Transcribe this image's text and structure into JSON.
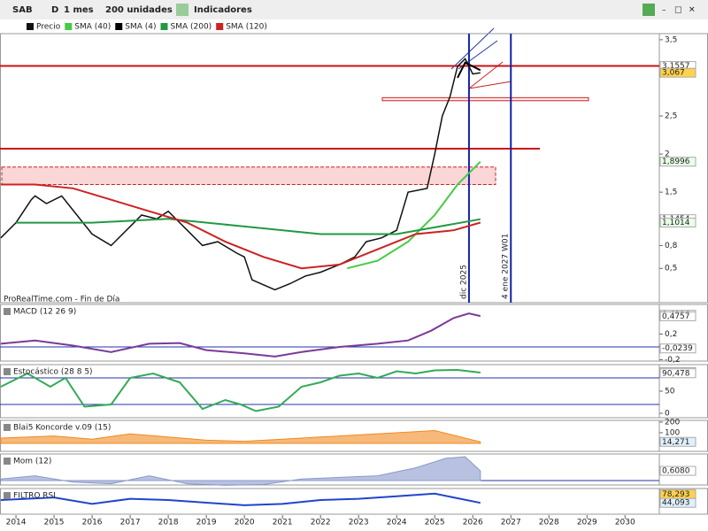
{
  "toolbar": {
    "symbol": "SAB",
    "mode": "D",
    "period": "1 mes",
    "units": "200 unidades",
    "indicators": "Indicadores"
  },
  "chart_data": [
    {
      "type": "line",
      "note": "ProRealTime.com - Fin de Día",
      "xlim": [
        2013.58,
        2030.9
      ],
      "xticks": [
        2014,
        2015,
        2016,
        2017,
        2018,
        2019,
        2020,
        2021,
        2022,
        2023,
        2024,
        2025,
        2026,
        2027,
        2028,
        2029,
        2030
      ],
      "ylim": [
        0.05,
        3.58
      ],
      "yticks": [
        {
          "value": 3.5,
          "label": "3,5"
        },
        {
          "value": 2.5,
          "label": "2,5"
        },
        {
          "value": 2,
          "label": "2"
        },
        {
          "value": 1.5,
          "label": "1,5"
        },
        {
          "value": 0.8,
          "label": "0,8"
        },
        {
          "value": 0.5,
          "label": "0,5"
        }
      ],
      "series": [
        {
          "name": "Precio",
          "color": "#111111",
          "x": [
            2013.6,
            2014.0,
            2014.4,
            2014.5,
            2014.8,
            2015.2,
            2015.6,
            2016.0,
            2016.5,
            2016.8,
            2017.3,
            2017.7,
            2018.0,
            2018.5,
            2018.9,
            2019.3,
            2019.8,
            2020.0,
            2020.2,
            2020.8,
            2021.2,
            2021.6,
            2022.0,
            2022.5,
            2022.9,
            2023.2,
            2023.6,
            2024.0,
            2024.3,
            2024.8,
            2025.0,
            2025.2,
            2025.4,
            2025.6,
            2025.8,
            2026.0,
            2026.2
          ],
          "values": [
            0.9,
            1.1,
            1.4,
            1.45,
            1.35,
            1.45,
            1.2,
            0.95,
            0.8,
            0.95,
            1.2,
            1.15,
            1.25,
            1.0,
            0.8,
            0.85,
            0.7,
            0.65,
            0.35,
            0.22,
            0.3,
            0.4,
            0.45,
            0.55,
            0.65,
            0.85,
            0.9,
            1.0,
            1.5,
            1.55,
            2.0,
            2.5,
            2.75,
            3.15,
            3.25,
            3.05,
            3.067
          ]
        },
        {
          "name": "SMA (40)",
          "color": "#44cc44",
          "x": [
            2022.7,
            2023.5,
            2024.3,
            2025.0,
            2025.6,
            2026.2
          ],
          "values": [
            0.5,
            0.6,
            0.85,
            1.2,
            1.6,
            1.9
          ]
        },
        {
          "name": "SMA (4)",
          "color": "#000000",
          "x": [
            2025.6,
            2025.8,
            2026.0,
            2026.2
          ],
          "values": [
            3.0,
            3.2,
            3.15,
            3.1
          ]
        },
        {
          "name": "SMA (200)",
          "color": "#229944",
          "x": [
            2014.0,
            2016.0,
            2018.0,
            2020.0,
            2022.0,
            2024.0,
            2026.2
          ],
          "values": [
            1.1,
            1.1,
            1.15,
            1.05,
            0.95,
            0.95,
            1.145
          ]
        },
        {
          "name": "SMA (120)",
          "color": "#cc2222",
          "x": [
            2013.6,
            2014.5,
            2015.5,
            2016.5,
            2017.5,
            2018.5,
            2019.5,
            2020.5,
            2021.5,
            2022.5,
            2023.5,
            2024.5,
            2025.5,
            2026.2
          ],
          "values": [
            1.6,
            1.6,
            1.55,
            1.4,
            1.25,
            1.1,
            0.85,
            0.65,
            0.5,
            0.55,
            0.75,
            0.95,
            1.0,
            1.1014
          ]
        }
      ],
      "hlines": [
        3.1557,
        2.07
      ],
      "zones": [
        [
          2.7,
          2.74
        ],
        [
          1.6,
          1.83
        ]
      ],
      "vlines": [
        {
          "x": 2025.9,
          "label": "dic 2025"
        },
        {
          "x": 2027.0,
          "label": "4 ene 2027 W01"
        }
      ],
      "markers": [
        {
          "value": 3.1557,
          "label": "3,1557",
          "color": "#ffffff"
        },
        {
          "value": 3.067,
          "label": "3,067",
          "color": "#ffd24d"
        },
        {
          "value": 1.8996,
          "label": "1,8996",
          "color": "#e8ffe8"
        },
        {
          "value": 1.1454,
          "label": "1,1454",
          "color": "#ffffff"
        },
        {
          "value": 1.1014,
          "label": "1,1014",
          "color": "#e8ffe8"
        }
      ]
    },
    {
      "type": "line",
      "title": "MACD (12 26 9)",
      "ylim": [
        -0.22,
        0.66
      ],
      "yticks": [
        {
          "value": 0.2,
          "label": "0,2"
        },
        {
          "value": -0.2,
          "label": "-0,2"
        }
      ],
      "series": [
        {
          "color": "#7a3a9a",
          "x": [
            2013.6,
            2014.5,
            2015.5,
            2016.5,
            2017.5,
            2018.3,
            2019.0,
            2020.0,
            2020.8,
            2021.5,
            2022.5,
            2023.5,
            2024.3,
            2024.9,
            2025.5,
            2025.9,
            2026.2
          ],
          "values": [
            0.05,
            0.1,
            0.02,
            -0.08,
            0.05,
            0.06,
            -0.05,
            -0.1,
            -0.15,
            -0.08,
            0.0,
            0.05,
            0.1,
            0.25,
            0.45,
            0.52,
            0.48
          ]
        }
      ],
      "hlines": [
        0
      ],
      "markers": [
        {
          "value": 0.4996,
          "label": "0,4996",
          "color": "#ffffff"
        },
        {
          "value": 0.4757,
          "label": "0,4757",
          "color": "#ffffff"
        },
        {
          "value": -0.0239,
          "label": "-0,0239",
          "color": "#ffffff"
        }
      ]
    },
    {
      "type": "line",
      "title": "Estocástico (28 8 5)",
      "ylim": [
        -10,
        110
      ],
      "yticks": [
        50,
        0
      ],
      "series": [
        {
          "color": "#33aa55",
          "x": [
            2013.6,
            2014.3,
            2014.9,
            2015.3,
            2015.8,
            2016.5,
            2017.0,
            2017.6,
            2018.3,
            2018.9,
            2019.5,
            2019.9,
            2020.3,
            2020.9,
            2021.5,
            2022.0,
            2022.5,
            2023.0,
            2023.5,
            2024.0,
            2024.5,
            2025.0,
            2025.6,
            2026.2
          ],
          "values": [
            60,
            90,
            60,
            80,
            15,
            20,
            80,
            90,
            70,
            10,
            30,
            20,
            5,
            15,
            60,
            70,
            85,
            90,
            80,
            95,
            90,
            97,
            98,
            92
          ]
        }
      ],
      "hlines": [
        80,
        20
      ],
      "markers": [
        {
          "value": 93.022,
          "label": "93,022",
          "color": "#ffffff"
        },
        {
          "value": 90.478,
          "label": "90,478",
          "color": "#ffffff"
        }
      ]
    },
    {
      "type": "area",
      "title": "Blai5 Koncorde v.09 (15)",
      "ylim": [
        -75,
        216
      ],
      "yticks": [
        200,
        100,
        0
      ],
      "series": [
        {
          "color": "#f08a20",
          "x": [
            2013.6,
            2015.0,
            2016.0,
            2017.0,
            2018.0,
            2019.0,
            2020.0,
            2021.0,
            2022.0,
            2023.0,
            2024.0,
            2025.0,
            2026.2
          ],
          "values": [
            50,
            70,
            40,
            90,
            60,
            30,
            20,
            40,
            60,
            80,
            100,
            120,
            14.271
          ]
        }
      ],
      "markers": [
        {
          "value": 14.271,
          "label": "14,271",
          "color": "#e0f0ff"
        }
      ]
    },
    {
      "type": "area",
      "title": "Mom (12)",
      "ylim": [
        -0.28,
        1.67
      ],
      "series": [
        {
          "color": "#8899cc",
          "x": [
            2013.6,
            2014.5,
            2015.5,
            2016.5,
            2017.5,
            2018.5,
            2019.5,
            2020.5,
            2021.5,
            2022.5,
            2023.5,
            2024.5,
            2025.3,
            2025.8,
            2026.2
          ],
          "values": [
            0.1,
            0.3,
            -0.1,
            -0.2,
            0.3,
            -0.2,
            -0.3,
            -0.25,
            0.1,
            0.2,
            0.3,
            0.8,
            1.4,
            1.5,
            0.608
          ]
        }
      ],
      "hlines": [
        0
      ],
      "markers": [
        {
          "value": 0.608,
          "label": "0,6080",
          "color": "#ffffff"
        }
      ]
    },
    {
      "type": "line",
      "title": "FILTRO RSI",
      "ylim": [
        0,
        100
      ],
      "series": [
        {
          "color": "#2244cc",
          "x": [
            2013.6,
            2015.0,
            2016.0,
            2017.0,
            2018.0,
            2019.0,
            2020.0,
            2021.0,
            2022.0,
            2023.0,
            2024.0,
            2025.0,
            2026.2
          ],
          "values": [
            55,
            65,
            40,
            60,
            55,
            45,
            35,
            40,
            55,
            60,
            70,
            80,
            44.093
          ]
        }
      ],
      "markers": [
        {
          "value": 78.293,
          "label": "78,293",
          "color": "#ffd24d"
        },
        {
          "value": 44.093,
          "label": "44,093",
          "color": "#e0f0ff"
        }
      ]
    }
  ]
}
